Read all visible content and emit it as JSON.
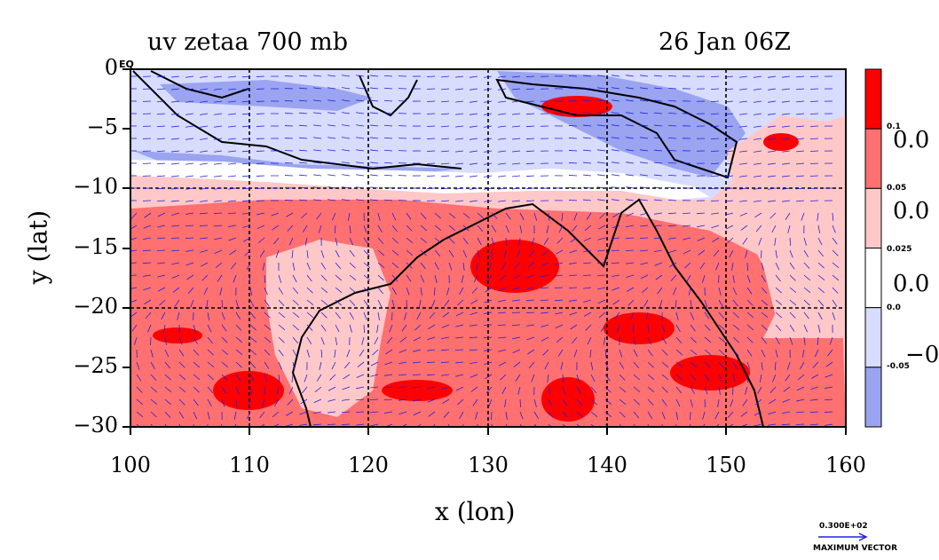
{
  "header": {
    "title_left": "uv zetaa 700 mb",
    "title_right": "26 Jan 06Z"
  },
  "axes": {
    "xlabel": "x (lon)",
    "ylabel": "y (lat)",
    "xticks": [
      "100",
      "110",
      "120",
      "130",
      "140",
      "150",
      "160"
    ],
    "yticks": [
      "0",
      "−5",
      "−10",
      "−15",
      "−20",
      "−25",
      "−30"
    ]
  },
  "map_extent": {
    "lon": [
      100,
      160
    ],
    "lat": [
      -30,
      0
    ]
  },
  "corner_label": "EQ",
  "colorbar": {
    "labels": [
      "0.1",
      "0.05",
      "0.025",
      "0.0",
      "-0.05"
    ],
    "cut_labels": [
      "0.0",
      "0.0",
      "0.0",
      "−0."
    ],
    "colors": [
      "#ff0000",
      "#ff7070",
      "#ffc8c8",
      "#ffffff",
      "#d8dcff",
      "#9aa4f0"
    ]
  },
  "vector_key": {
    "value": "0.300E+02",
    "label": "MAXIMUM VECTOR"
  },
  "colors": {
    "vector": "#2020e0",
    "contour": "#e00000",
    "coast": "#000000"
  }
}
